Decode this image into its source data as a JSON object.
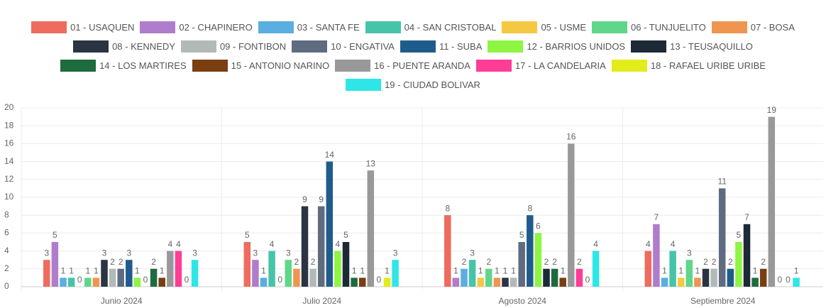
{
  "chart_data": {
    "type": "bar",
    "categories": [
      "Junio 2024",
      "Julio 2024",
      "Agosto 2024",
      "Septiembre 2024"
    ],
    "ylim": [
      0,
      20
    ],
    "yticks": [
      0,
      2,
      4,
      6,
      8,
      10,
      12,
      14,
      16,
      18,
      20
    ],
    "grid": true,
    "series": [
      {
        "name": "01 - USAQUEN",
        "color": "#ee6b5e",
        "values": [
          3,
          5,
          8,
          4
        ]
      },
      {
        "name": "02 - CHAPINERO",
        "color": "#b07ccc",
        "values": [
          5,
          3,
          1,
          7
        ]
      },
      {
        "name": "03 - SANTA FE",
        "color": "#5aaee0",
        "values": [
          1,
          1,
          2,
          1
        ]
      },
      {
        "name": "04 - SAN CRISTOBAL",
        "color": "#45c4aa",
        "values": [
          1,
          4,
          3,
          4
        ]
      },
      {
        "name": "05 - USME",
        "color": "#f5c842",
        "values": [
          0,
          0,
          1,
          1
        ]
      },
      {
        "name": "06 - TUNJUELITO",
        "color": "#5fd68a",
        "values": [
          1,
          3,
          2,
          3
        ]
      },
      {
        "name": "07 - BOSA",
        "color": "#ef9550",
        "values": [
          1,
          2,
          1,
          1
        ]
      },
      {
        "name": "08 - KENNEDY",
        "color": "#2a3442",
        "values": [
          3,
          9,
          1,
          2
        ]
      },
      {
        "name": "09 - FONTIBON",
        "color": "#b2bab8",
        "values": [
          2,
          2,
          1,
          2
        ]
      },
      {
        "name": "10 - ENGATIVA",
        "color": "#5f6b80",
        "values": [
          2,
          9,
          5,
          11
        ]
      },
      {
        "name": "11 - SUBA",
        "color": "#1f5c8c",
        "values": [
          3,
          14,
          8,
          2
        ]
      },
      {
        "name": "12 - BARRIOS UNIDOS",
        "color": "#8ef542",
        "values": [
          1,
          4,
          6,
          5
        ]
      },
      {
        "name": "13 - TEUSAQUILLO",
        "color": "#1e2936",
        "values": [
          0,
          5,
          2,
          7
        ]
      },
      {
        "name": "14 - LOS MARTIRES",
        "color": "#1d6b3e",
        "values": [
          2,
          1,
          2,
          1
        ]
      },
      {
        "name": "15 - ANTONIO NARINO",
        "color": "#7a3e10",
        "values": [
          1,
          1,
          1,
          2
        ]
      },
      {
        "name": "16 - PUENTE ARANDA",
        "color": "#999999",
        "values": [
          4,
          13,
          16,
          19
        ]
      },
      {
        "name": "17 - LA CANDELARIA",
        "color": "#ff3d96",
        "values": [
          4,
          0,
          2,
          0
        ]
      },
      {
        "name": "18 - RAFAEL URIBE URIBE",
        "color": "#e2ec1a",
        "values": [
          0,
          1,
          0,
          0
        ]
      },
      {
        "name": "19 - CIUDAD BOLIVAR",
        "color": "#2ee6e6",
        "values": [
          3,
          3,
          4,
          1
        ]
      }
    ]
  }
}
